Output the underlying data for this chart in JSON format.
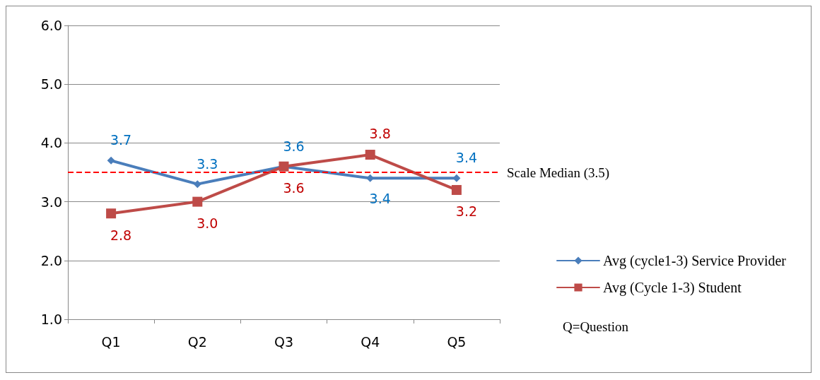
{
  "chart_data": {
    "type": "line",
    "categories": [
      "Q1",
      "Q2",
      "Q3",
      "Q4",
      "Q5"
    ],
    "series": [
      {
        "name": "Avg (cycle1-3) Service Provider",
        "color": "#4a7ebb",
        "marker": "diamond",
        "values": [
          3.7,
          3.3,
          3.6,
          3.4,
          3.4
        ],
        "value_labels": [
          "3.7",
          "3.3",
          "3.6",
          "3.4",
          "3.4"
        ]
      },
      {
        "name": "Avg (Cycle 1-3) Student",
        "color": "#be4b48",
        "marker": "square",
        "values": [
          2.8,
          3.0,
          3.6,
          3.8,
          3.2
        ],
        "value_labels": [
          "2.8",
          "3.0",
          "3.6",
          "3.8",
          "3.2"
        ]
      }
    ],
    "ylim": [
      1,
      6
    ],
    "yticks": [
      {
        "value": 1,
        "label": "1.0"
      },
      {
        "value": 2,
        "label": "2.0"
      },
      {
        "value": 3,
        "label": "3.0"
      },
      {
        "value": 4,
        "label": "4.0"
      },
      {
        "value": 5,
        "label": "5.0"
      },
      {
        "value": 6,
        "label": "6.0"
      }
    ],
    "ref_lines": [
      {
        "axis": "y",
        "value": 3.5,
        "label": "Scale Median (3.5)",
        "color": "#ff0000",
        "line_style": "dashed"
      }
    ],
    "annotations": [
      "Q=Question"
    ],
    "grid": "y",
    "legend": "right"
  }
}
